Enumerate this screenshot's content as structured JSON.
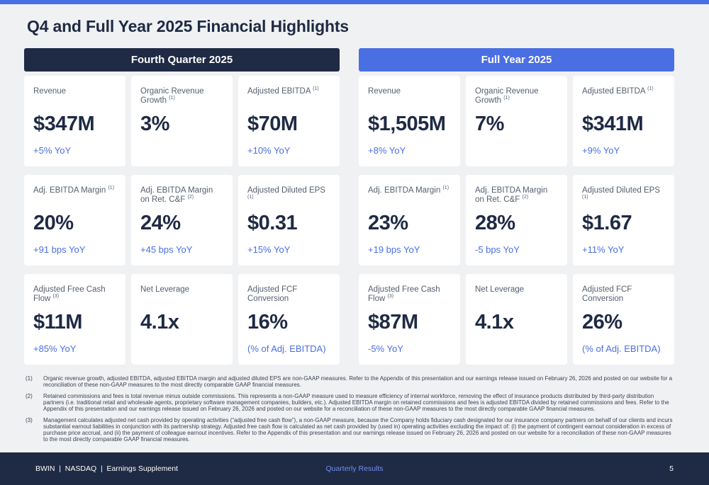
{
  "title": "Q4 and Full Year 2025 Financial Highlights",
  "colors": {
    "navy": "#1f2a44",
    "accent": "#4a6fe3",
    "background": "#f0f1f3"
  },
  "panels": [
    {
      "header": "Fourth Quarter 2025",
      "cards": [
        {
          "label": "Revenue",
          "note": "",
          "value": "$347M",
          "change": "+5% YoY"
        },
        {
          "label": "Organic Revenue Growth",
          "note": "(1)",
          "value": "3%",
          "change": ""
        },
        {
          "label": "Adjusted EBITDA",
          "note": "(1)",
          "value": "$70M",
          "change": "+10% YoY"
        },
        {
          "label": "Adj. EBITDA Margin",
          "note": "(1)",
          "value": "20%",
          "change": "+91 bps YoY"
        },
        {
          "label": "Adj. EBITDA Margin on Ret. C&F",
          "note": "(2)",
          "value": "24%",
          "change": "+45 bps YoY"
        },
        {
          "label": "Adjusted Diluted EPS",
          "note": "(1)",
          "value": "$0.31",
          "change": "+15% YoY"
        },
        {
          "label": "Adjusted Free Cash Flow",
          "note": "(3)",
          "value": "$11M",
          "change": "+85% YoY"
        },
        {
          "label": "Net Leverage",
          "note": "",
          "value": "4.1x",
          "change": ""
        },
        {
          "label": "Adjusted FCF Conversion",
          "note": "",
          "value": "16%",
          "change": "(% of Adj. EBITDA)"
        }
      ]
    },
    {
      "header": "Full Year 2025",
      "cards": [
        {
          "label": "Revenue",
          "note": "",
          "value": "$1,505M",
          "change": "+8% YoY"
        },
        {
          "label": "Organic Revenue Growth",
          "note": "(1)",
          "value": "7%",
          "change": ""
        },
        {
          "label": "Adjusted EBITDA",
          "note": "(1)",
          "value": "$341M",
          "change": "+9% YoY"
        },
        {
          "label": "Adj. EBITDA Margin",
          "note": "(1)",
          "value": "23%",
          "change": "+19 bps YoY"
        },
        {
          "label": "Adj. EBITDA Margin on Ret. C&F",
          "note": "(2)",
          "value": "28%",
          "change": "-5 bps YoY"
        },
        {
          "label": "Adjusted Diluted EPS",
          "note": "(1)",
          "value": "$1.67",
          "change": "+11% YoY"
        },
        {
          "label": "Adjusted Free Cash Flow",
          "note": "(3)",
          "value": "$87M",
          "change": "-5% YoY"
        },
        {
          "label": "Net Leverage",
          "note": "",
          "value": "4.1x",
          "change": ""
        },
        {
          "label": "Adjusted FCF Conversion",
          "note": "",
          "value": "26%",
          "change": "(% of Adj. EBITDA)"
        }
      ]
    }
  ],
  "footnotes": [
    {
      "num": "(1)",
      "text": "Organic revenue growth, adjusted EBITDA, adjusted EBITDA margin and adjusted diluted EPS are non-GAAP measures. Refer to the Appendix of this presentation and our earnings release issued on February 26, 2026 and posted on our website for a reconciliation of these non-GAAP measures to the most directly comparable GAAP financial measures."
    },
    {
      "num": "(2)",
      "text": "Retained commissions and fees is total revenue minus outside commissions. This represents a non-GAAP measure used to measure efficiency of internal workforce, removing the effect of insurance products distributed by third-party distribution partners (i.e. traditional retail and wholesale agents, proprietary software management companies, builders, etc.). Adjusted EBITDA margin on retained commissions and fees is adjusted EBITDA divided by retained commissions and fees. Refer to the Appendix of this presentation and our earnings release issued on February 26, 2026 and posted on our website for a reconciliation of these non-GAAP measures to the most directly comparable GAAP financial measures."
    },
    {
      "num": "(3)",
      "text": "Management calculates adjusted net cash provided by operating activities (“adjusted free cash flow”), a non-GAAP measure, because the Company holds fiduciary cash designated for our insurance company partners on behalf of our clients and incurs substantial earnout liabilities in conjunction with its partnership strategy. Adjusted free cash flow is calculated as net cash provided by (used in) operating activities excluding the impact of: (i) the payment of contingent earnout consideration in excess of purchase price accrual, and (ii) the payment of colleague earnout incentives. Refer to the Appendix of this presentation and our earnings release issued on February 26, 2026 and posted on our website for a reconciliation of these non-GAAP measures to the most directly comparable GAAP financial measures."
    }
  ],
  "footer": {
    "left": "BWIN  |  NASDAQ  |  Earnings Supplement",
    "center": "Quarterly Results",
    "page": "5"
  }
}
